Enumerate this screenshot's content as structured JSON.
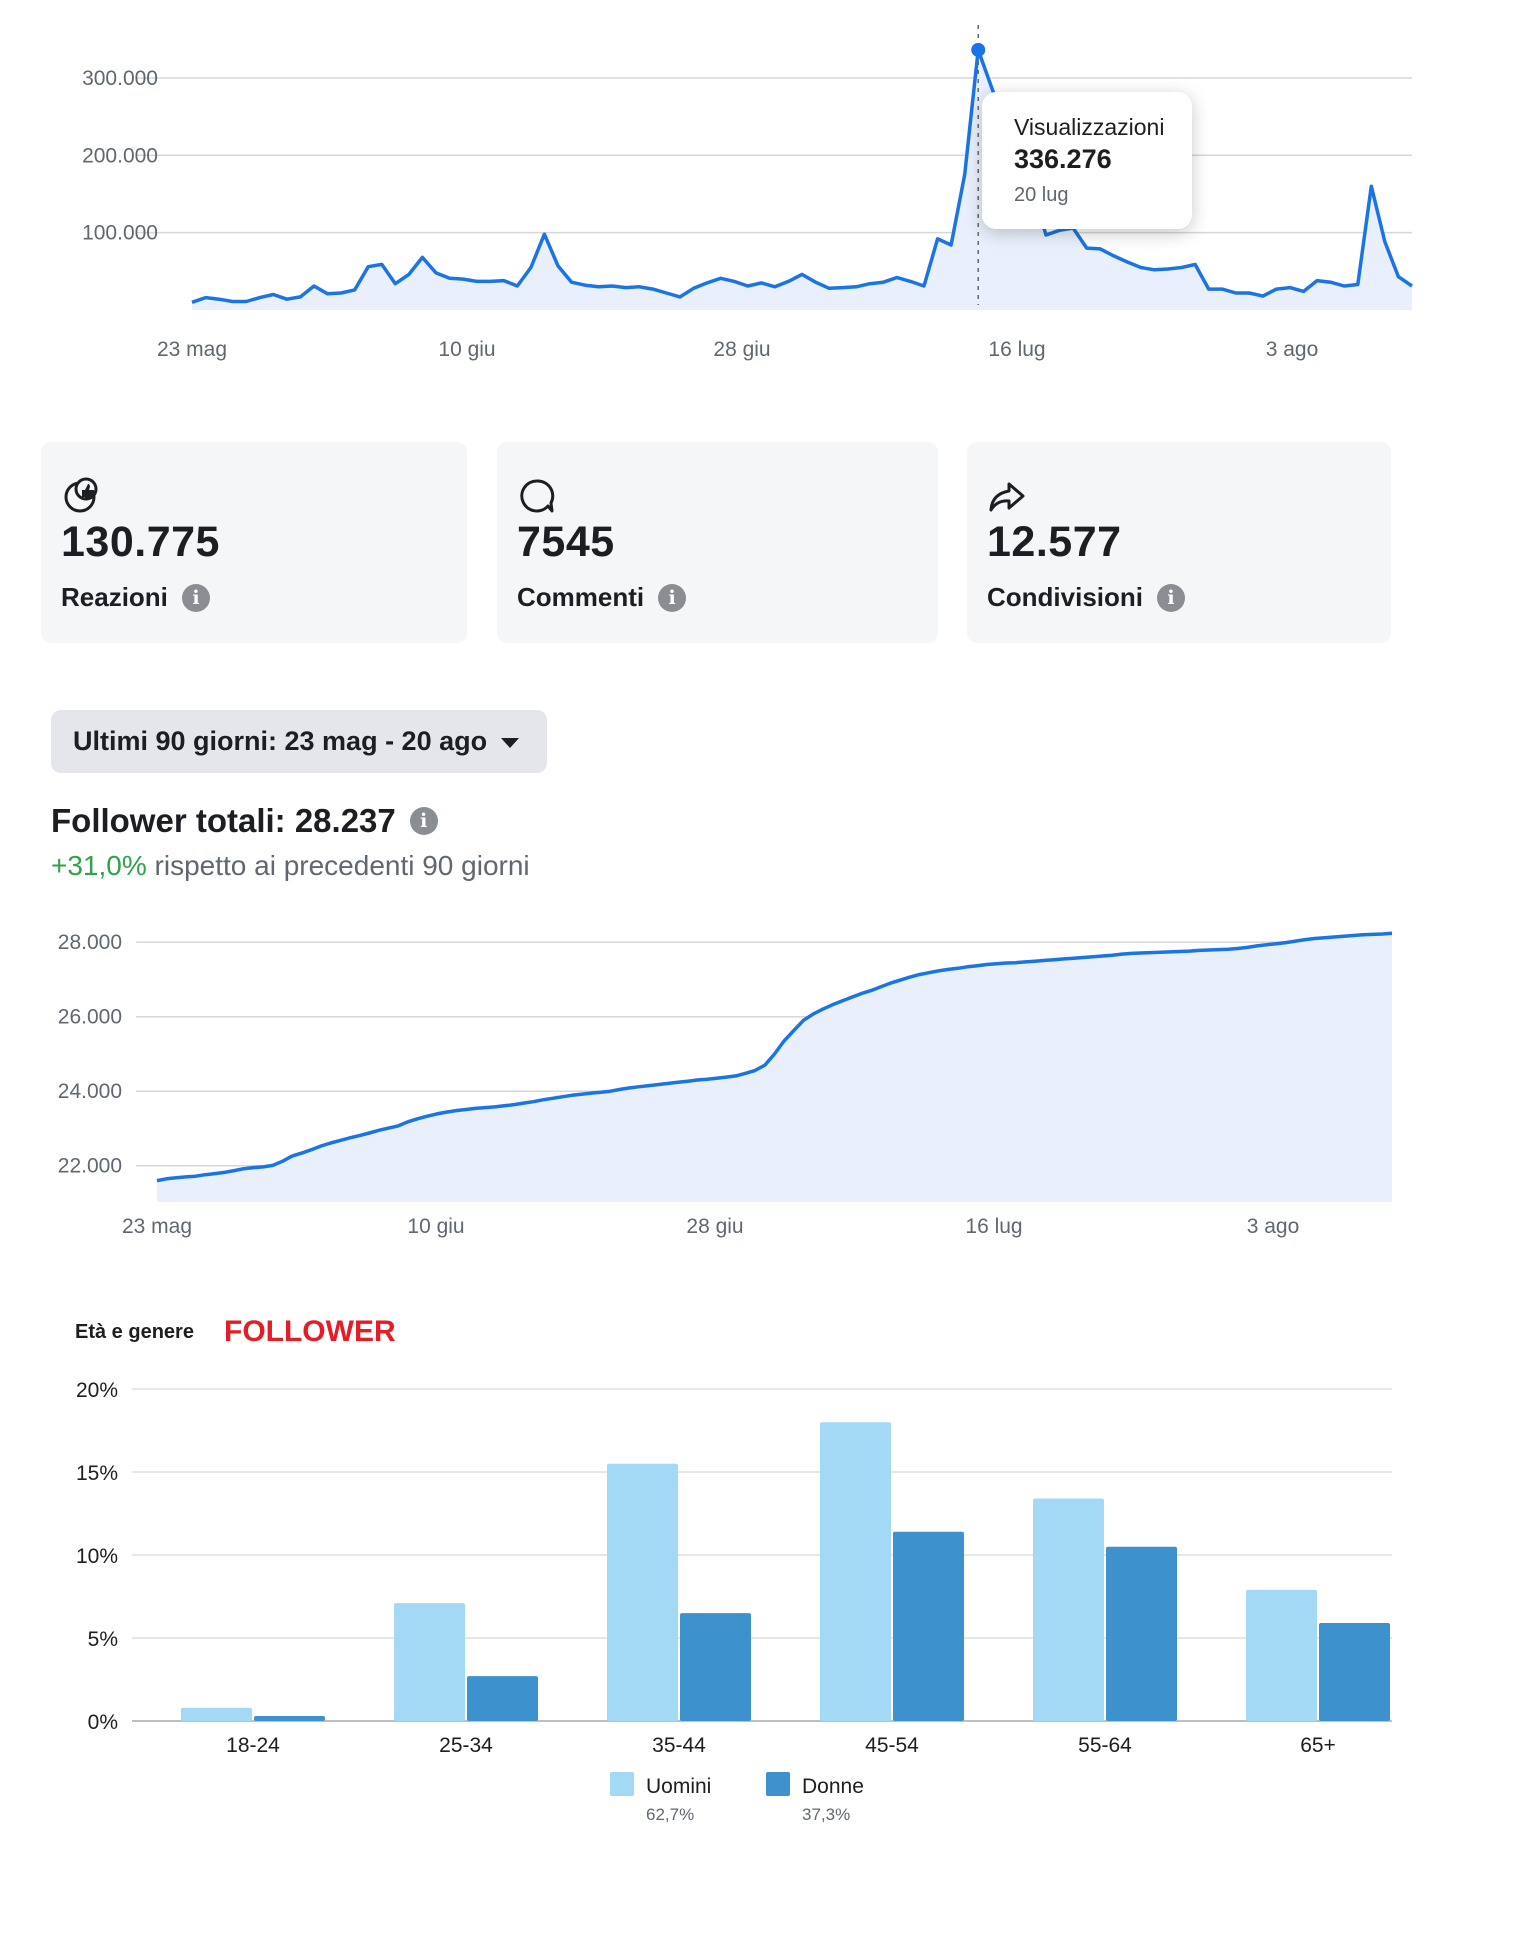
{
  "views_chart": {
    "chart_data": {
      "type": "area",
      "x_tick_labels": [
        "23 mag",
        "10 giu",
        "28 giu",
        "16 lug",
        "3 ago"
      ],
      "y_tick_labels": [
        "300.000",
        "200.000",
        "100.000"
      ],
      "y_ticks": [
        300000,
        200000,
        100000
      ],
      "ylim": [
        0,
        340000
      ],
      "grid": true,
      "series": [
        {
          "values": [
            10000,
            16000,
            14000,
            11000,
            11000,
            16000,
            20000,
            14000,
            17000,
            31000,
            21000,
            22000,
            26000,
            56000,
            59000,
            34000,
            46000,
            68000,
            48000,
            41000,
            40000,
            37000,
            37000,
            38000,
            31000,
            55000,
            98000,
            57000,
            36000,
            32000,
            30000,
            31000,
            29000,
            30000,
            27000,
            22000,
            17000,
            28000,
            35000,
            41000,
            37000,
            31000,
            35000,
            30000,
            37000,
            46000,
            36000,
            28000,
            29000,
            30000,
            34000,
            36000,
            42000,
            37000,
            31000,
            92000,
            84000,
            175000,
            336276,
            287000,
            240000,
            200000,
            155000,
            97000,
            103000,
            106000,
            80000,
            79000,
            70000,
            62000,
            55000,
            52000,
            53000,
            55000,
            59000,
            27000,
            27000,
            22000,
            22000,
            18000,
            27000,
            29000,
            24000,
            38000,
            36000,
            31000,
            33000,
            160000,
            88000,
            43000,
            31000
          ]
        }
      ]
    },
    "tooltip": {
      "title": "Visualizzazioni",
      "value": "336.276",
      "date": "20 lug"
    }
  },
  "stats": [
    {
      "icon": "reactions-icon",
      "value": "130.775",
      "label": "Reazioni"
    },
    {
      "icon": "comment-icon",
      "value": "7545",
      "label": "Commenti"
    },
    {
      "icon": "share-icon",
      "value": "12.577",
      "label": "Condivisioni"
    }
  ],
  "info_glyph": "i",
  "date_filter": {
    "label": "Ultimi 90 giorni: 23 mag - 20 ago"
  },
  "followers": {
    "title": "Follower totali: 28.237",
    "change": "+31,0%",
    "change_suffix": " rispetto ai precedenti 90 giorni",
    "colors": {
      "positive": "#31a24c"
    }
  },
  "followers_chart": {
    "chart_data": {
      "type": "area",
      "x_tick_labels": [
        "23 mag",
        "10 giu",
        "28 giu",
        "16 lug",
        "3 ago"
      ],
      "y_tick_labels": [
        "28.000",
        "26.000",
        "24.000",
        "22.000"
      ],
      "y_ticks": [
        28000,
        26000,
        24000,
        22000
      ],
      "ylim": [
        21000,
        28300
      ],
      "grid": true,
      "series": [
        {
          "values": [
            21600,
            21650,
            21680,
            21700,
            21720,
            21760,
            21790,
            21820,
            21870,
            21920,
            21950,
            21970,
            22010,
            22120,
            22260,
            22340,
            22430,
            22530,
            22610,
            22680,
            22750,
            22810,
            22880,
            22950,
            23010,
            23070,
            23180,
            23260,
            23330,
            23390,
            23440,
            23480,
            23510,
            23540,
            23560,
            23580,
            23610,
            23640,
            23680,
            23720,
            23770,
            23810,
            23850,
            23890,
            23920,
            23950,
            23970,
            24000,
            24050,
            24090,
            24120,
            24150,
            24180,
            24210,
            24240,
            24270,
            24300,
            24320,
            24350,
            24380,
            24410,
            24480,
            24560,
            24700,
            25000,
            25350,
            25630,
            25900,
            26070,
            26200,
            26320,
            26420,
            26520,
            26620,
            26700,
            26800,
            26900,
            26980,
            27060,
            27130,
            27180,
            27230,
            27270,
            27300,
            27340,
            27370,
            27400,
            27420,
            27440,
            27450,
            27470,
            27490,
            27510,
            27530,
            27550,
            27570,
            27590,
            27610,
            27630,
            27650,
            27680,
            27700,
            27710,
            27720,
            27730,
            27740,
            27750,
            27760,
            27780,
            27790,
            27800,
            27810,
            27830,
            27860,
            27900,
            27930,
            27960,
            27990,
            28030,
            28070,
            28100,
            28120,
            28140,
            28160,
            28180,
            28200,
            28210,
            28220,
            28237
          ]
        }
      ]
    }
  },
  "demographics": {
    "title": "Età e genere",
    "highlight": "FOLLOWER",
    "highlight_color": "#e41e26",
    "chart_data": {
      "type": "bar",
      "categories": [
        "18-24",
        "25-34",
        "35-44",
        "45-54",
        "55-64",
        "65+"
      ],
      "series": [
        {
          "name": "Uomini",
          "share": "62,7%",
          "color": "#a3d9f5",
          "values": [
            0.8,
            7.1,
            15.5,
            18.0,
            13.4,
            7.9
          ]
        },
        {
          "name": "Donne",
          "share": "37,3%",
          "color": "#3d92cd",
          "values": [
            0.3,
            2.7,
            6.5,
            11.4,
            10.5,
            5.9
          ]
        }
      ],
      "y_tick_labels": [
        "20%",
        "15%",
        "10%",
        "5%",
        "0%"
      ],
      "y_ticks": [
        20,
        15,
        10,
        5,
        0
      ],
      "ylim": [
        0,
        20
      ],
      "grid": true,
      "legend_position": "bottom-center"
    }
  }
}
